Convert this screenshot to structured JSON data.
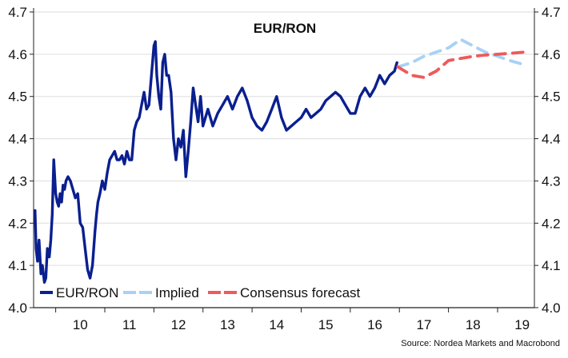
{
  "chart_data": {
    "type": "line",
    "title": "EUR/RON",
    "xlabel": "",
    "ylabel": "",
    "source": "Source: Nordea Markets and Macrobond",
    "xlim": [
      2009.55,
      2019.75
    ],
    "ylim": [
      4.0,
      4.7
    ],
    "x_ticks": [
      "10",
      "11",
      "12",
      "13",
      "14",
      "15",
      "16",
      "17",
      "18",
      "19"
    ],
    "y_ticks": [
      "4.0",
      "4.1",
      "4.2",
      "4.3",
      "4.4",
      "4.5",
      "4.6",
      "4.7"
    ],
    "grid": true,
    "legend_position": "bottom-left",
    "colors": {
      "actual": "#0a1f8f",
      "implied": "#a8d1f5",
      "consensus": "#ef5a5a",
      "grid": "#dddddd",
      "axis": "#222222"
    },
    "series": [
      {
        "name": "EUR/RON",
        "style": "solid",
        "x": [
          2009.58,
          2009.6,
          2009.63,
          2009.66,
          2009.7,
          2009.73,
          2009.77,
          2009.8,
          2009.83,
          2009.87,
          2009.9,
          2009.93,
          2009.96,
          2010.0,
          2010.03,
          2010.06,
          2010.09,
          2010.12,
          2010.15,
          2010.18,
          2010.21,
          2010.25,
          2010.3,
          2010.35,
          2010.4,
          2010.45,
          2010.5,
          2010.55,
          2010.6,
          2010.65,
          2010.7,
          2010.75,
          2010.8,
          2010.83,
          2010.86,
          2010.9,
          2010.95,
          2011.0,
          2011.05,
          2011.1,
          2011.15,
          2011.2,
          2011.25,
          2011.3,
          2011.35,
          2011.4,
          2011.45,
          2011.5,
          2011.55,
          2011.6,
          2011.65,
          2011.7,
          2011.75,
          2011.8,
          2011.85,
          2011.9,
          2011.95,
          2012.0,
          2012.03,
          2012.06,
          2012.1,
          2012.14,
          2012.18,
          2012.22,
          2012.26,
          2012.3,
          2012.35,
          2012.4,
          2012.45,
          2012.5,
          2012.55,
          2012.6,
          2012.65,
          2012.7,
          2012.75,
          2012.8,
          2012.85,
          2012.9,
          2012.95,
          2013.0,
          2013.1,
          2013.2,
          2013.3,
          2013.4,
          2013.5,
          2013.6,
          2013.7,
          2013.8,
          2013.9,
          2014.0,
          2014.05,
          2014.1,
          2014.2,
          2014.3,
          2014.4,
          2014.5,
          2014.6,
          2014.7,
          2014.8,
          2014.9,
          2015.0,
          2015.1,
          2015.2,
          2015.3,
          2015.4,
          2015.5,
          2015.6,
          2015.7,
          2015.8,
          2015.9,
          2016.0,
          2016.1,
          2016.2,
          2016.3,
          2016.4,
          2016.5,
          2016.6,
          2016.7,
          2016.8,
          2016.9,
          2016.95
        ],
        "y": [
          4.23,
          4.14,
          4.11,
          4.16,
          4.08,
          4.1,
          4.06,
          4.07,
          4.14,
          4.12,
          4.16,
          4.22,
          4.35,
          4.27,
          4.25,
          4.24,
          4.27,
          4.25,
          4.29,
          4.28,
          4.3,
          4.31,
          4.3,
          4.28,
          4.26,
          4.27,
          4.2,
          4.19,
          4.14,
          4.09,
          4.07,
          4.1,
          4.18,
          4.22,
          4.25,
          4.27,
          4.3,
          4.28,
          4.32,
          4.35,
          4.36,
          4.37,
          4.35,
          4.35,
          4.36,
          4.34,
          4.37,
          4.35,
          4.35,
          4.42,
          4.44,
          4.45,
          4.48,
          4.51,
          4.47,
          4.48,
          4.55,
          4.62,
          4.63,
          4.55,
          4.5,
          4.47,
          4.58,
          4.6,
          4.55,
          4.55,
          4.51,
          4.4,
          4.35,
          4.4,
          4.38,
          4.42,
          4.31,
          4.37,
          4.44,
          4.52,
          4.48,
          4.44,
          4.5,
          4.43,
          4.47,
          4.43,
          4.46,
          4.48,
          4.5,
          4.47,
          4.5,
          4.52,
          4.49,
          4.45,
          4.44,
          4.43,
          4.42,
          4.44,
          4.47,
          4.5,
          4.45,
          4.42,
          4.43,
          4.44,
          4.45,
          4.47,
          4.45,
          4.46,
          4.47,
          4.49,
          4.5,
          4.51,
          4.5,
          4.48,
          4.46,
          4.46,
          4.5,
          4.52,
          4.5,
          4.52,
          4.55,
          4.53,
          4.55,
          4.56,
          4.58
        ]
      },
      {
        "name": "Implied",
        "style": "dashed",
        "x": [
          2016.97,
          2017.25,
          2017.5,
          2017.75,
          2018.0,
          2018.25,
          2018.5,
          2018.75,
          2019.0,
          2019.25,
          2019.55
        ],
        "y": [
          4.57,
          4.58,
          4.595,
          4.605,
          4.615,
          4.635,
          4.62,
          4.605,
          4.595,
          4.585,
          4.575
        ]
      },
      {
        "name": "Consensus forecast",
        "style": "dashed",
        "x": [
          2016.97,
          2017.25,
          2017.5,
          2017.75,
          2018.0,
          2018.25,
          2018.5,
          2018.75,
          2019.0,
          2019.25,
          2019.55
        ],
        "y": [
          4.57,
          4.55,
          4.545,
          4.56,
          4.585,
          4.59,
          4.595,
          4.598,
          4.6,
          4.602,
          4.605
        ]
      }
    ]
  }
}
